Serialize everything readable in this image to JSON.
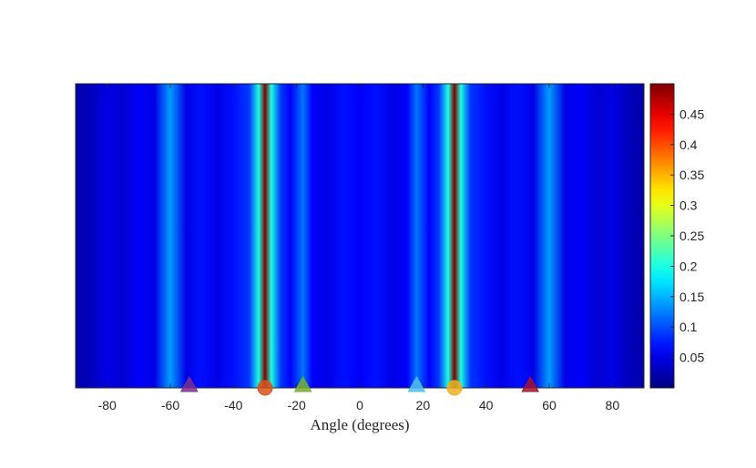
{
  "chart_data": {
    "type": "heatmap",
    "xlabel": "Angle (degrees)",
    "ylabel": "",
    "title": "",
    "xlim": [
      -90,
      90
    ],
    "xticks": [
      -80,
      -60,
      -40,
      -20,
      0,
      20,
      40,
      60,
      80
    ],
    "y_axis_ticks_shown": false,
    "colormap": "jet",
    "colorbar": {
      "clim": [
        0,
        0.5
      ],
      "ticks": [
        0.05,
        0.1,
        0.15,
        0.2,
        0.25,
        0.3,
        0.35,
        0.4,
        0.45
      ]
    },
    "profile": {
      "description_angles": [
        -90,
        -85,
        -80,
        -75,
        -70,
        -65,
        -60,
        -55,
        -50,
        -45,
        -40,
        -35,
        -32,
        -30,
        -28,
        -25,
        -22,
        -18,
        -15,
        -10,
        -5,
        0,
        5,
        10,
        15,
        18,
        22,
        25,
        28,
        30,
        32,
        35,
        40,
        45,
        50,
        55,
        60,
        65,
        70,
        75,
        80,
        85,
        90
      ],
      "values": [
        0.02,
        0.03,
        0.05,
        0.04,
        0.06,
        0.05,
        0.14,
        0.05,
        0.07,
        0.05,
        0.07,
        0.09,
        0.2,
        0.5,
        0.2,
        0.09,
        0.06,
        0.12,
        0.06,
        0.05,
        0.07,
        0.06,
        0.07,
        0.05,
        0.06,
        0.12,
        0.06,
        0.09,
        0.2,
        0.5,
        0.2,
        0.09,
        0.07,
        0.05,
        0.07,
        0.05,
        0.14,
        0.05,
        0.06,
        0.04,
        0.05,
        0.03,
        0.02
      ]
    },
    "markers": [
      {
        "shape": "triangle",
        "x": -54,
        "color": "#7e2f8e"
      },
      {
        "shape": "circle",
        "x": -30,
        "color": "#d95319"
      },
      {
        "shape": "triangle",
        "x": -18,
        "color": "#77ac30"
      },
      {
        "shape": "triangle",
        "x": 18,
        "color": "#4dbeee"
      },
      {
        "shape": "circle",
        "x": 30,
        "color": "#edb120"
      },
      {
        "shape": "triangle",
        "x": 54,
        "color": "#a2142f"
      }
    ]
  }
}
